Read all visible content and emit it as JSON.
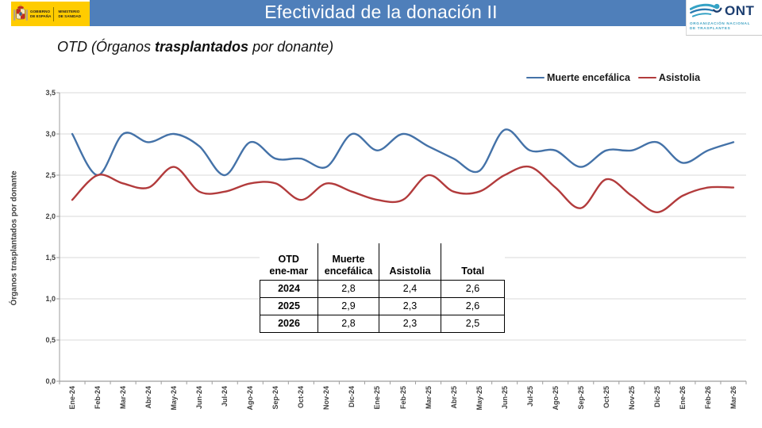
{
  "header": {
    "title": "Efectividad de la donación II",
    "gobierno": {
      "gobierno_label": "GOBIERNO\nDE ESPAÑA",
      "ministerio_label": "MINISTERIO\nDE SANIDAD"
    },
    "ont": {
      "acronym": "ONT",
      "org_name": "ORGANIZACIÓN NACIONAL\nDE TRASPLANTES"
    }
  },
  "subtitle": {
    "part1": "OTD (Órganos ",
    "bold": "trasplantados",
    "part2": " por donante)"
  },
  "chart_data": {
    "type": "line",
    "title": "",
    "xlabel": "",
    "ylabel": "Órganos trasplantados por donante",
    "ylim": [
      0,
      3.5
    ],
    "ytick_step": 0.5,
    "ytick_labels_top_to_bottom": [
      "3,5",
      "3,0",
      "2,5",
      "2,0",
      "1,5",
      "1,0",
      "0,5",
      "0,0"
    ],
    "grid": true,
    "legend_position": "top-right",
    "line_style": "smooth",
    "categories": [
      "Ene-24",
      "Feb-24",
      "Mar-24",
      "Abr-24",
      "May-24",
      "Jun-24",
      "Jul-24",
      "Ago-24",
      "Sep-24",
      "Oct-24",
      "Nov-24",
      "Dic-24",
      "Ene-25",
      "Feb-25",
      "Mar-25",
      "Abr-25",
      "May-25",
      "Jun-25",
      "Jul-25",
      "Ago-25",
      "Sep-25",
      "Oct-25",
      "Nov-25",
      "Dic-25",
      "Ene-26",
      "Feb-26",
      "Mar-26"
    ],
    "series": [
      {
        "name": "Muerte encefálica",
        "color": "#4472a8",
        "values": [
          3.0,
          2.5,
          3.0,
          2.9,
          3.0,
          2.85,
          2.5,
          2.9,
          2.7,
          2.7,
          2.6,
          3.0,
          2.8,
          3.0,
          2.85,
          2.7,
          2.55,
          3.05,
          2.8,
          2.8,
          2.6,
          2.8,
          2.8,
          2.9,
          2.65,
          2.8,
          2.9
        ]
      },
      {
        "name": "Asistolia",
        "color": "#b23b3c",
        "values": [
          2.2,
          2.5,
          2.4,
          2.35,
          2.6,
          2.3,
          2.3,
          2.4,
          2.4,
          2.2,
          2.4,
          2.3,
          2.2,
          2.2,
          2.5,
          2.3,
          2.3,
          2.5,
          2.6,
          2.35,
          2.1,
          2.45,
          2.25,
          2.05,
          2.25,
          2.35,
          2.35
        ]
      }
    ]
  },
  "table": {
    "header": [
      [
        "OTD",
        "ene-mar"
      ],
      [
        "Muerte",
        "encefálica"
      ],
      [
        "Asistolia"
      ],
      [
        "Total"
      ]
    ],
    "rows": [
      [
        "2024",
        "2,8",
        "2,4",
        "2,6"
      ],
      [
        "2025",
        "2,9",
        "2,3",
        "2,6"
      ],
      [
        "2026",
        "2,8",
        "2,3",
        "2,5"
      ]
    ]
  },
  "colors": {
    "header_blue": "#4f7fba",
    "gobierno_yellow": "#ffcc00",
    "muerte_encefalica_line": "#4472a8",
    "asistolia_line": "#b23b3c",
    "gridline": "#d9d9d9",
    "axis": "#9e9e9e",
    "ont_teal": "#35a2c5",
    "ont_navy": "#1c3e70"
  }
}
